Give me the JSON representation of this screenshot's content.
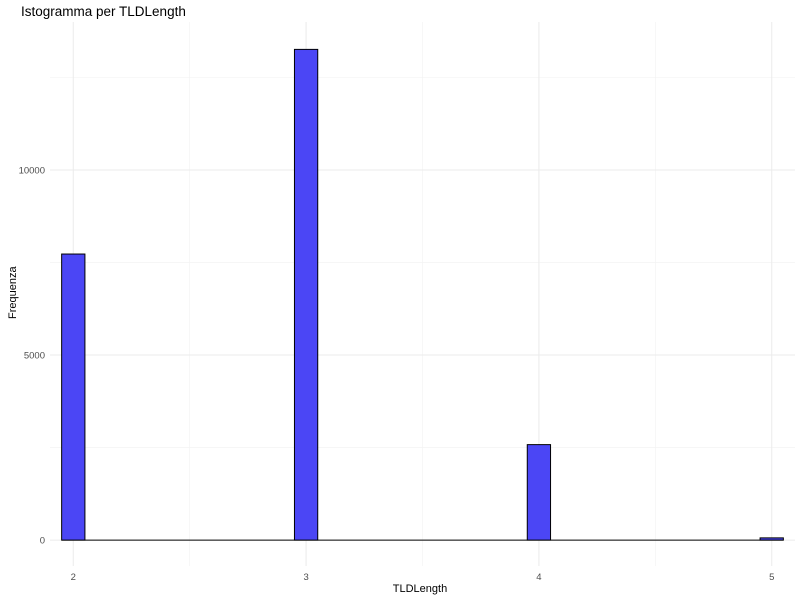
{
  "chart_data": {
    "type": "bar",
    "title": "Istogramma per TLDLength",
    "xlabel": "TLDLength",
    "ylabel": "Frequenza",
    "x_ticks": [
      "2",
      "3",
      "4",
      "5"
    ],
    "y_ticks": [
      "0",
      "5000",
      "10000"
    ],
    "categories": [
      "2",
      "3",
      "4",
      "5"
    ],
    "values": [
      7730,
      13260,
      2580,
      60
    ],
    "xlim": [
      1.9,
      5.1
    ],
    "ylim": [
      -700,
      14000
    ],
    "grid": true,
    "bar_color": "#4b46f5",
    "bar_edge_color": "#000000",
    "bar_width": 0.1
  }
}
